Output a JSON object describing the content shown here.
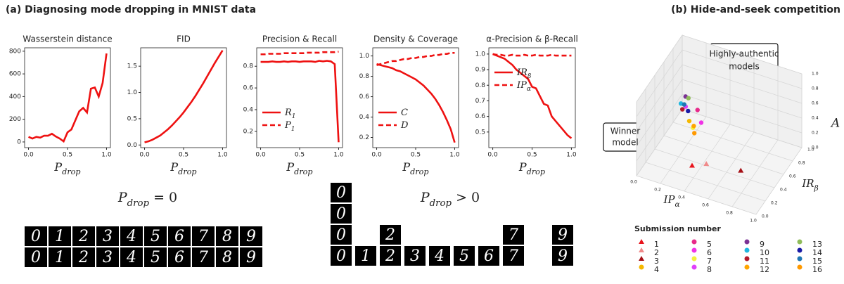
{
  "panel_titles": [
    "(a) Diagnosing mode dropping in MNIST data",
    "(b) Hide-and-seek competition"
  ],
  "chart_data": [
    {
      "type": "line",
      "title": "Wasserstein distance",
      "x": [
        0,
        0.05,
        0.1,
        0.15,
        0.2,
        0.25,
        0.3,
        0.35,
        0.4,
        0.45,
        0.5,
        0.55,
        0.6,
        0.65,
        0.7,
        0.75,
        0.8,
        0.85,
        0.9,
        0.95,
        1
      ],
      "xlim": [
        -0.05,
        1.05
      ],
      "xticks": [
        {
          "value": 0,
          "label": "0.0"
        },
        {
          "value": 0.5,
          "label": "0.5"
        },
        {
          "value": 1,
          "label": "1.0"
        }
      ],
      "x_label": {
        "base": "P",
        "sub": "drop"
      },
      "ylim": [
        -50,
        830
      ],
      "yticks": [
        0,
        200,
        400,
        600,
        800
      ],
      "series": [
        {
          "color": "#ee1111",
          "style": "solid",
          "values": [
            45,
            30,
            45,
            38,
            55,
            55,
            72,
            48,
            30,
            5,
            85,
            110,
            190,
            270,
            300,
            260,
            470,
            480,
            400,
            520,
            780
          ]
        }
      ]
    },
    {
      "type": "line",
      "title": "FID",
      "x": [
        0,
        0.05,
        0.1,
        0.15,
        0.2,
        0.25,
        0.3,
        0.35,
        0.4,
        0.45,
        0.5,
        0.55,
        0.6,
        0.65,
        0.7,
        0.75,
        0.8,
        0.85,
        0.9,
        0.95,
        1
      ],
      "xlim": [
        -0.05,
        1.05
      ],
      "xticks": [
        {
          "value": 0,
          "label": "0.0"
        },
        {
          "value": 0.5,
          "label": "0.5"
        },
        {
          "value": 1,
          "label": "1.0"
        }
      ],
      "x_label": {
        "base": "P",
        "sub": "drop"
      },
      "ylim": [
        -0.05,
        1.85
      ],
      "yticks": [
        {
          "value": 0,
          "label": "0.0"
        },
        0.5,
        {
          "value": 1,
          "label": "1.0"
        },
        1.5
      ],
      "series": [
        {
          "color": "#ee1111",
          "style": "solid",
          "values": [
            0.05,
            0.07,
            0.1,
            0.14,
            0.18,
            0.24,
            0.3,
            0.37,
            0.45,
            0.53,
            0.62,
            0.72,
            0.82,
            0.93,
            1.05,
            1.17,
            1.3,
            1.43,
            1.56,
            1.68,
            1.8
          ]
        }
      ]
    },
    {
      "type": "line",
      "title": "Precision & Recall",
      "x": [
        0,
        0.05,
        0.1,
        0.15,
        0.2,
        0.25,
        0.3,
        0.35,
        0.4,
        0.45,
        0.5,
        0.55,
        0.6,
        0.65,
        0.7,
        0.75,
        0.8,
        0.85,
        0.9,
        0.95,
        1
      ],
      "xlim": [
        -0.05,
        1.05
      ],
      "xticks": [
        {
          "value": 0,
          "label": "0.0"
        },
        {
          "value": 0.5,
          "label": "0.5"
        },
        {
          "value": 1,
          "label": "1.0"
        }
      ],
      "x_label": {
        "base": "P",
        "sub": "drop"
      },
      "ylim": [
        0.05,
        0.97
      ],
      "yticks": [
        0.2,
        0.4,
        0.6,
        0.8
      ],
      "legend": "lower left",
      "series": [
        {
          "name": {
            "base": "R",
            "sub": "1"
          },
          "color": "#ee1111",
          "style": "solid",
          "values": [
            0.84,
            0.84,
            0.84,
            0.845,
            0.84,
            0.84,
            0.845,
            0.84,
            0.845,
            0.845,
            0.84,
            0.845,
            0.845,
            0.845,
            0.84,
            0.85,
            0.845,
            0.85,
            0.845,
            0.82,
            0.1
          ]
        },
        {
          "name": {
            "base": "P",
            "sub": "1"
          },
          "color": "#ee1111",
          "style": "dashed",
          "values": [
            0.91,
            0.91,
            0.915,
            0.915,
            0.915,
            0.915,
            0.92,
            0.92,
            0.92,
            0.92,
            0.92,
            0.92,
            0.925,
            0.925,
            0.925,
            0.925,
            0.93,
            0.93,
            0.93,
            0.93,
            0.935
          ]
        }
      ]
    },
    {
      "type": "line",
      "title": "Density & Coverage",
      "x": [
        0,
        0.05,
        0.1,
        0.15,
        0.2,
        0.25,
        0.3,
        0.35,
        0.4,
        0.45,
        0.5,
        0.55,
        0.6,
        0.65,
        0.7,
        0.75,
        0.8,
        0.85,
        0.9,
        0.95,
        1
      ],
      "xlim": [
        -0.05,
        1.05
      ],
      "xticks": [
        {
          "value": 0,
          "label": "0.0"
        },
        {
          "value": 0.5,
          "label": "0.5"
        },
        {
          "value": 1,
          "label": "1.0"
        }
      ],
      "x_label": {
        "base": "P",
        "sub": "drop"
      },
      "ylim": [
        0.1,
        1.08
      ],
      "yticks": [
        0.2,
        0.4,
        0.6,
        0.8,
        {
          "value": 1,
          "label": "1.0"
        }
      ],
      "legend": "lower left",
      "series": [
        {
          "name": {
            "base": "C",
            "sub": ""
          },
          "color": "#ee1111",
          "style": "solid",
          "values": [
            0.92,
            0.91,
            0.9,
            0.89,
            0.88,
            0.86,
            0.85,
            0.83,
            0.81,
            0.79,
            0.77,
            0.74,
            0.71,
            0.67,
            0.63,
            0.58,
            0.52,
            0.45,
            0.37,
            0.28,
            0.15
          ]
        },
        {
          "name": {
            "base": "D",
            "sub": ""
          },
          "color": "#ee1111",
          "style": "dashed",
          "values": [
            0.91,
            0.92,
            0.93,
            0.94,
            0.95,
            0.95,
            0.96,
            0.97,
            0.97,
            0.98,
            0.98,
            0.99,
            0.99,
            1.0,
            1.0,
            1.01,
            1.01,
            1.02,
            1.02,
            1.03,
            1.03
          ]
        }
      ]
    },
    {
      "type": "line",
      "title": "α-Precision & β-Recall",
      "x": [
        0,
        0.05,
        0.1,
        0.15,
        0.2,
        0.25,
        0.3,
        0.35,
        0.4,
        0.45,
        0.5,
        0.55,
        0.6,
        0.65,
        0.7,
        0.75,
        0.8,
        0.85,
        0.9,
        0.95,
        1
      ],
      "xlim": [
        -0.05,
        1.05
      ],
      "xticks": [
        {
          "value": 0,
          "label": "0.0"
        },
        {
          "value": 0.5,
          "label": "0.5"
        },
        {
          "value": 1,
          "label": "1.0"
        }
      ],
      "x_label": {
        "base": "P",
        "sub": "drop"
      },
      "ylim": [
        0.4,
        1.04
      ],
      "yticks": [
        0.5,
        0.6,
        0.7,
        0.8,
        0.9,
        {
          "value": 1,
          "label": "1.0"
        }
      ],
      "legend": "upper right",
      "series": [
        {
          "name": {
            "base": "IR",
            "sub": "β"
          },
          "color": "#ee1111",
          "style": "solid",
          "values": [
            1.0,
            0.99,
            0.98,
            0.97,
            0.95,
            0.93,
            0.9,
            0.88,
            0.86,
            0.84,
            0.79,
            0.78,
            0.73,
            0.68,
            0.67,
            0.6,
            0.57,
            0.54,
            0.51,
            0.48,
            0.46
          ]
        },
        {
          "name": {
            "base": "IP",
            "sub": "α"
          },
          "color": "#ee1111",
          "style": "dashed",
          "values": [
            1.0,
            0.995,
            0.995,
            0.99,
            0.99,
            0.995,
            0.99,
            0.99,
            0.995,
            0.99,
            0.99,
            0.995,
            0.99,
            0.99,
            0.99,
            0.995,
            0.99,
            0.99,
            0.99,
            0.99,
            0.99
          ]
        }
      ]
    },
    {
      "type": "scatter3d",
      "x_label": {
        "base": "IP",
        "sub": "α"
      },
      "y_label": {
        "base": "IR",
        "sub": "β"
      },
      "z_label": "A",
      "xlim": [
        0,
        1
      ],
      "ylim": [
        0,
        1
      ],
      "zlim": [
        0,
        1
      ],
      "xticks": [
        {
          "value": 0,
          "label": "0.0"
        },
        0.2,
        0.4,
        0.6,
        0.8,
        {
          "value": 1,
          "label": "1.0"
        }
      ],
      "yticks": [
        {
          "value": 0,
          "label": "0.0"
        },
        0.2,
        0.4,
        0.6,
        0.8,
        {
          "value": 1,
          "label": "1.0"
        }
      ],
      "zticks": [
        {
          "value": 0,
          "label": "0.0"
        },
        0.2,
        0.4,
        0.6,
        0.8,
        {
          "value": 1,
          "label": "1.0"
        }
      ],
      "annotations": [
        [
          "Highly-authentic",
          "models"
        ],
        [
          "Winner",
          "model"
        ]
      ],
      "legend_title": "Submission number",
      "series": [
        {
          "name": "1",
          "color": "#e8141c",
          "marker": "triangle",
          "x": [
            0.35
          ],
          "y": [
            0.3
          ],
          "z": [
            0.05
          ]
        },
        {
          "name": "2",
          "color": "#f08a8a",
          "marker": "triangle",
          "x": [
            0.45
          ],
          "y": [
            0.35
          ],
          "z": [
            0.08
          ]
        },
        {
          "name": "3",
          "color": "#a50f15",
          "marker": "triangle",
          "x": [
            0.7
          ],
          "y": [
            0.45
          ],
          "z": [
            0.03
          ]
        },
        {
          "name": "4",
          "color": "#f5b800",
          "marker": "circle",
          "x": [
            0.25
          ],
          "y": [
            0.5
          ],
          "z": [
            0.42
          ]
        },
        {
          "name": "5",
          "color": "#e7298a",
          "marker": "circle",
          "x": [
            0.3
          ],
          "y": [
            0.55
          ],
          "z": [
            0.55
          ]
        },
        {
          "name": "6",
          "color": "#f032e6",
          "marker": "circle",
          "x": [
            0.35
          ],
          "y": [
            0.5
          ],
          "z": [
            0.45
          ]
        },
        {
          "name": "7",
          "color": "#f2f23c",
          "marker": "circle",
          "x": [
            0.3
          ],
          "y": [
            0.45
          ],
          "z": [
            0.4
          ]
        },
        {
          "name": "8",
          "color": "#e040fb",
          "marker": "circle",
          "x": [
            0.22
          ],
          "y": [
            0.5
          ],
          "z": [
            0.6
          ]
        },
        {
          "name": "9",
          "color": "#7b3294",
          "marker": "circle",
          "x": [
            0.2
          ],
          "y": [
            0.55
          ],
          "z": [
            0.68
          ]
        },
        {
          "name": "10",
          "color": "#1fb6e0",
          "marker": "circle",
          "x": [
            0.18
          ],
          "y": [
            0.5
          ],
          "z": [
            0.62
          ]
        },
        {
          "name": "11",
          "color": "#b2182b",
          "marker": "circle",
          "x": [
            0.2
          ],
          "y": [
            0.48
          ],
          "z": [
            0.57
          ]
        },
        {
          "name": "12",
          "color": "#ffa500",
          "marker": "circle",
          "x": [
            0.28
          ],
          "y": [
            0.52
          ],
          "z": [
            0.35
          ]
        },
        {
          "name": "13",
          "color": "#8fbc5a",
          "marker": "circle",
          "x": [
            0.22
          ],
          "y": [
            0.56
          ],
          "z": [
            0.66
          ]
        },
        {
          "name": "14",
          "color": "#1a1aa6",
          "marker": "circle",
          "x": [
            0.24
          ],
          "y": [
            0.5
          ],
          "z": [
            0.55
          ]
        },
        {
          "name": "15",
          "color": "#1f77b4",
          "marker": "circle",
          "x": [
            0.2
          ],
          "y": [
            0.52
          ],
          "z": [
            0.6
          ]
        },
        {
          "name": "16",
          "color": "#ff9900",
          "marker": "circle",
          "x": [
            0.3
          ],
          "y": [
            0.48
          ],
          "z": [
            0.3
          ]
        }
      ]
    }
  ],
  "panel_a": {
    "formula_left": {
      "base": "P",
      "sub": "drop",
      "rest": " = 0"
    },
    "formula_right": {
      "base": "P",
      "sub": "drop",
      "rest": " > 0"
    },
    "digits_left": [
      [
        "0",
        "1",
        "2",
        "3",
        "4",
        "5",
        "6",
        "7",
        "8",
        "9"
      ],
      [
        "0",
        "1",
        "2",
        "3",
        "4",
        "5",
        "6",
        "7",
        "8",
        "9"
      ]
    ],
    "digits_right": [
      [
        "0",
        null,
        null,
        null,
        null,
        null,
        null,
        null,
        null,
        null
      ],
      [
        "0",
        null,
        null,
        null,
        null,
        null,
        null,
        null,
        null,
        null
      ],
      [
        "0",
        null,
        "2",
        null,
        null,
        null,
        null,
        "7",
        null,
        "9"
      ],
      [
        "0",
        "1",
        "2",
        "3",
        "4",
        "5",
        "6",
        "7",
        null,
        "9"
      ]
    ]
  }
}
